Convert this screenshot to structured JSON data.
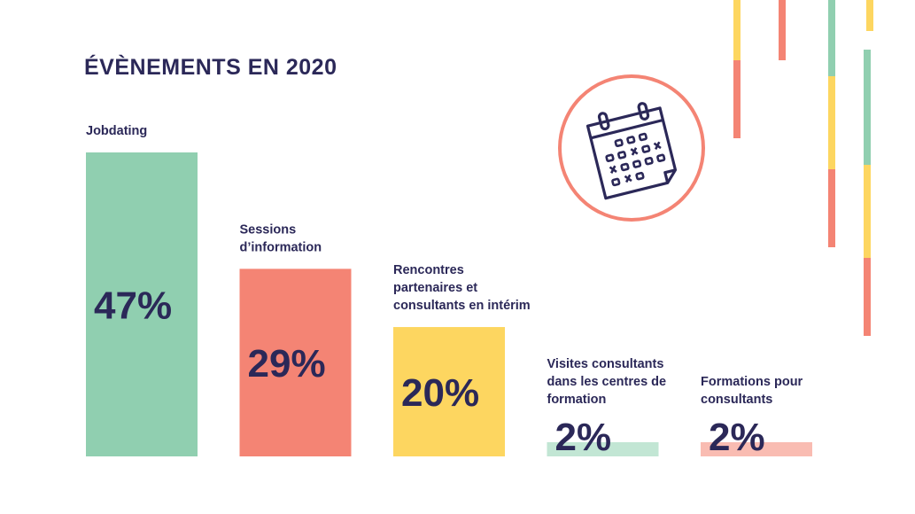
{
  "title": "ÉVÈNEMENTS EN 2020",
  "chart_data": {
    "type": "bar",
    "title": "ÉVÈNEMENTS EN 2020",
    "categories": [
      "Jobdating",
      "Sessions d’information",
      "Rencontres partenaires et consultants en intérim",
      "Visites consultants dans les centres de formation",
      "Formations pour consultants"
    ],
    "category_lines": [
      [
        "Jobdating"
      ],
      [
        "Sessions",
        "d’information"
      ],
      [
        "Rencontres",
        "partenaires et",
        "consultants en intérim"
      ],
      [
        "Visites consultants",
        "dans les centres de",
        "formation"
      ],
      [
        "Formations pour",
        "consultants"
      ]
    ],
    "values": [
      47,
      29,
      20,
      2,
      2
    ],
    "value_labels": [
      "47%",
      "29%",
      "20%",
      "2%",
      "2%"
    ],
    "unit": "%",
    "ylim": [
      0,
      47
    ],
    "grid": false,
    "legend": "none",
    "colors": [
      "#90cfb0",
      "#f48474",
      "#fdd660",
      "#c2e6d4",
      "#f9bcb2"
    ]
  },
  "icons": {
    "calendar": "calendar-icon"
  },
  "decor_colors": {
    "green": "#90cfb0",
    "red": "#f48474",
    "yellow": "#fdd660",
    "stroke": "#2b2858",
    "ring": "#f48474"
  }
}
